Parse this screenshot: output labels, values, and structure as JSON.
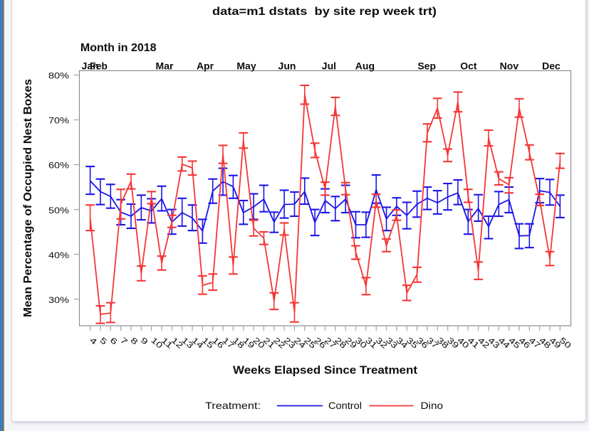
{
  "window": {
    "background_color": "#f4f6fa",
    "edge_accent_color": "#1583e8",
    "panel_color": "#ffffff"
  },
  "chart_data": {
    "type": "line",
    "title": "data=m1 dstats  by site rep week trt)",
    "top_axis": {
      "title": "Month in 2018",
      "months": [
        {
          "label": "Jan",
          "week": 4.0
        },
        {
          "label": "Feb",
          "week": 4.83
        },
        {
          "label": "Mar",
          "week": 11.28
        },
        {
          "label": "Apr",
          "week": 15.25
        },
        {
          "label": "May",
          "week": 19.3
        },
        {
          "label": "Jun",
          "week": 23.27
        },
        {
          "label": "Jul",
          "week": 27.38
        },
        {
          "label": "Aug",
          "week": 30.9
        },
        {
          "label": "Sep",
          "week": 36.95
        },
        {
          "label": "Oct",
          "week": 41.04
        },
        {
          "label": "Nov",
          "week": 45.02
        },
        {
          "label": "Dec",
          "week": 49.14
        }
      ]
    },
    "x_axis": {
      "title": "Weeks Elapsed Since Treatment",
      "tick_min": 4,
      "tick_max": 50,
      "tick_step": 1
    },
    "y_axis": {
      "title": "Mean Percentage of Occupied Nest Boxes",
      "tick_values": [
        30,
        40,
        50,
        60,
        70,
        80
      ],
      "tick_suffix": "%",
      "range": [
        24.1,
        81.0
      ],
      "grid": false
    },
    "legend": {
      "title": "Treatment:",
      "position": "bottom",
      "entries": [
        {
          "label": "Control",
          "color": "#1a14e8"
        },
        {
          "label": "Dino",
          "color": "#f53636"
        }
      ]
    },
    "series": [
      {
        "name": "Control",
        "color": "#1a14e8",
        "points": [
          {
            "week": 4,
            "mean": 56.4,
            "lower": 53.4,
            "upper": 59.6
          },
          {
            "week": 5,
            "mean": 54.0,
            "lower": 51.1,
            "upper": 56.8
          },
          {
            "week": 6,
            "mean": 52.9,
            "lower": 50.3,
            "upper": 55.6
          },
          {
            "week": 7,
            "mean": 49.4,
            "lower": 46.6,
            "upper": 52.2
          },
          {
            "week": 8,
            "mean": 48.5,
            "lower": 45.8,
            "upper": 51.2
          },
          {
            "week": 9,
            "mean": 50.4,
            "lower": 47.7,
            "upper": 53.2
          },
          {
            "week": 10,
            "mean": 49.7,
            "lower": 47.0,
            "upper": 52.4
          },
          {
            "week": 11,
            "mean": 52.4,
            "lower": 49.7,
            "upper": 55.2
          },
          {
            "week": 12,
            "mean": 47.2,
            "lower": 44.5,
            "upper": 50.0
          },
          {
            "week": 13,
            "mean": 49.3,
            "lower": 46.3,
            "upper": 52.5
          },
          {
            "week": 14,
            "mean": 48.1,
            "lower": 45.3,
            "upper": 51.0
          },
          {
            "week": 15,
            "mean": 45.2,
            "lower": 42.5,
            "upper": 47.8
          },
          {
            "week": 16,
            "mean": 54.1,
            "lower": 51.4,
            "upper": 56.8
          },
          {
            "week": 17,
            "mean": 56.2,
            "lower": 53.2,
            "upper": 59.2
          },
          {
            "week": 18,
            "mean": 55.1,
            "lower": 52.5,
            "upper": 57.6
          },
          {
            "week": 19,
            "mean": 49.3,
            "lower": 46.7,
            "upper": 52.0
          },
          {
            "week": 20,
            "mean": 50.6,
            "lower": 47.8,
            "upper": 53.5
          },
          {
            "week": 21,
            "mean": 52.3,
            "lower": 49.5,
            "upper": 55.4
          },
          {
            "week": 22,
            "mean": 47.2,
            "lower": 44.9,
            "upper": 49.4
          },
          {
            "week": 23,
            "mean": 51.1,
            "lower": 48.1,
            "upper": 54.3
          },
          {
            "week": 24,
            "mean": 51.2,
            "lower": 48.5,
            "upper": 53.9
          },
          {
            "week": 25,
            "mean": 54.0,
            "lower": 51.2,
            "upper": 57.0
          },
          {
            "week": 26,
            "mean": 47.1,
            "lower": 44.2,
            "upper": 50.0
          },
          {
            "week": 27,
            "mean": 52.0,
            "lower": 49.3,
            "upper": 54.6
          },
          {
            "week": 28,
            "mean": 50.2,
            "lower": 47.5,
            "upper": 52.9
          },
          {
            "week": 29,
            "mean": 52.3,
            "lower": 49.3,
            "upper": 55.4
          },
          {
            "week": 30,
            "mean": 46.6,
            "lower": 43.7,
            "upper": 49.5
          },
          {
            "week": 31,
            "mean": 46.6,
            "lower": 43.8,
            "upper": 49.4
          },
          {
            "week": 32,
            "mean": 54.4,
            "lower": 51.4,
            "upper": 57.7
          },
          {
            "week": 33,
            "mean": 47.9,
            "lower": 45.3,
            "upper": 50.5
          },
          {
            "week": 34,
            "mean": 50.7,
            "lower": 48.7,
            "upper": 52.6
          },
          {
            "week": 35,
            "mean": 48.7,
            "lower": 45.7,
            "upper": 51.6
          },
          {
            "week": 36,
            "mean": 51.2,
            "lower": 48.3,
            "upper": 54.1
          },
          {
            "week": 37,
            "mean": 52.5,
            "lower": 50.0,
            "upper": 55.0
          },
          {
            "week": 38,
            "mean": 51.5,
            "lower": 49.0,
            "upper": 54.2
          },
          {
            "week": 39,
            "mean": 52.8,
            "lower": 49.9,
            "upper": 55.8
          },
          {
            "week": 40,
            "mean": 53.7,
            "lower": 51.1,
            "upper": 56.6
          },
          {
            "week": 41,
            "mean": 47.3,
            "lower": 44.5,
            "upper": 50.0
          },
          {
            "week": 42,
            "mean": 50.2,
            "lower": 47.4,
            "upper": 53.3
          },
          {
            "week": 43,
            "mean": 46.2,
            "lower": 43.5,
            "upper": 48.5
          },
          {
            "week": 44,
            "mean": 51.1,
            "lower": 48.5,
            "upper": 54.0
          },
          {
            "week": 45,
            "mean": 52.2,
            "lower": 49.3,
            "upper": 55.0
          },
          {
            "week": 46,
            "mean": 44.1,
            "lower": 41.3,
            "upper": 46.8
          },
          {
            "week": 47,
            "mean": 44.2,
            "lower": 41.5,
            "upper": 46.8
          },
          {
            "week": 48,
            "mean": 54.2,
            "lower": 51.5,
            "upper": 56.9
          },
          {
            "week": 49,
            "mean": 53.8,
            "lower": 51.0,
            "upper": 56.7
          },
          {
            "week": 50,
            "mean": 50.7,
            "lower": 48.2,
            "upper": 53.2
          }
        ]
      },
      {
        "name": "Dino",
        "color": "#f53636",
        "points": [
          {
            "week": 4,
            "mean": 48.1,
            "lower": 45.3,
            "upper": 51.0
          },
          {
            "week": 5,
            "mean": 26.6,
            "lower": 24.6,
            "upper": 28.5
          },
          {
            "week": 6,
            "mean": 26.9,
            "lower": 24.8,
            "upper": 29.2
          },
          {
            "week": 7,
            "mean": 51.2,
            "lower": 47.9,
            "upper": 54.5
          },
          {
            "week": 8,
            "mean": 56.3,
            "lower": 54.6,
            "upper": 57.9
          },
          {
            "week": 9,
            "mean": 35.7,
            "lower": 34.1,
            "upper": 37.4
          },
          {
            "week": 10,
            "mean": 52.7,
            "lower": 51.3,
            "upper": 54.0
          },
          {
            "week": 11,
            "mean": 38.1,
            "lower": 36.5,
            "upper": 39.6
          },
          {
            "week": 12,
            "mean": 47.3,
            "lower": 46.0,
            "upper": 48.7
          },
          {
            "week": 13,
            "mean": 60.1,
            "lower": 58.6,
            "upper": 61.7
          },
          {
            "week": 14,
            "mean": 59.3,
            "lower": 57.7,
            "upper": 60.8
          },
          {
            "week": 15,
            "mean": 33.1,
            "lower": 31.1,
            "upper": 35.2
          },
          {
            "week": 16,
            "mean": 33.7,
            "lower": 32.0,
            "upper": 35.6
          },
          {
            "week": 17,
            "mean": 62.3,
            "lower": 60.3,
            "upper": 64.3
          },
          {
            "week": 18,
            "mean": 37.5,
            "lower": 35.6,
            "upper": 39.4
          },
          {
            "week": 19,
            "mean": 65.4,
            "lower": 63.7,
            "upper": 67.1
          },
          {
            "week": 20,
            "mean": 45.8,
            "lower": 44.1,
            "upper": 47.6
          },
          {
            "week": 21,
            "mean": 43.6,
            "lower": 42.2,
            "upper": 45.0
          },
          {
            "week": 22,
            "mean": 29.6,
            "lower": 27.7,
            "upper": 31.4
          },
          {
            "week": 23,
            "mean": 45.6,
            "lower": 44.3,
            "upper": 47.0
          },
          {
            "week": 24,
            "mean": 27.1,
            "lower": 24.9,
            "upper": 29.2
          },
          {
            "week": 25,
            "mean": 75.6,
            "lower": 73.5,
            "upper": 77.7
          },
          {
            "week": 26,
            "mean": 63.2,
            "lower": 61.6,
            "upper": 64.8
          },
          {
            "week": 27,
            "mean": 54.6,
            "lower": 53.2,
            "upper": 56.1
          },
          {
            "week": 28,
            "mean": 73.0,
            "lower": 71.0,
            "upper": 75.0
          },
          {
            "week": 29,
            "mean": 54.6,
            "lower": 53.3,
            "upper": 56.0
          },
          {
            "week": 30,
            "mean": 40.5,
            "lower": 38.9,
            "upper": 41.9
          },
          {
            "week": 31,
            "mean": 32.9,
            "lower": 31.0,
            "upper": 34.8
          },
          {
            "week": 32,
            "mean": 52.0,
            "lower": 50.5,
            "upper": 53.4
          },
          {
            "week": 33,
            "mean": 41.9,
            "lower": 40.6,
            "upper": 43.4
          },
          {
            "week": 34,
            "mean": 48.7,
            "lower": 47.6,
            "upper": 49.9
          },
          {
            "week": 35,
            "mean": 31.4,
            "lower": 29.7,
            "upper": 33.1
          },
          {
            "week": 36,
            "mean": 35.5,
            "lower": 33.8,
            "upper": 37.1
          },
          {
            "week": 37,
            "mean": 67.1,
            "lower": 65.1,
            "upper": 69.1
          },
          {
            "week": 38,
            "mean": 72.6,
            "lower": 70.4,
            "upper": 74.8
          },
          {
            "week": 39,
            "mean": 62.1,
            "lower": 60.7,
            "upper": 63.5
          },
          {
            "week": 40,
            "mean": 74.0,
            "lower": 71.8,
            "upper": 76.2
          },
          {
            "week": 41,
            "mean": 53.1,
            "lower": 51.6,
            "upper": 54.5
          },
          {
            "week": 42,
            "mean": 36.3,
            "lower": 34.4,
            "upper": 38.3
          },
          {
            "week": 43,
            "mean": 65.9,
            "lower": 64.2,
            "upper": 67.7
          },
          {
            "week": 44,
            "mean": 56.9,
            "lower": 55.5,
            "upper": 58.4
          },
          {
            "week": 45,
            "mean": 55.5,
            "lower": 53.7,
            "upper": 57.1
          },
          {
            "week": 46,
            "mean": 72.6,
            "lower": 70.6,
            "upper": 74.7
          },
          {
            "week": 47,
            "mean": 62.7,
            "lower": 61.1,
            "upper": 64.4
          },
          {
            "week": 48,
            "mean": 52.2,
            "lower": 50.9,
            "upper": 53.4
          },
          {
            "week": 49,
            "mean": 39.0,
            "lower": 37.5,
            "upper": 40.6
          },
          {
            "week": 50,
            "mean": 60.8,
            "lower": 59.2,
            "upper": 62.5
          }
        ]
      }
    ]
  }
}
